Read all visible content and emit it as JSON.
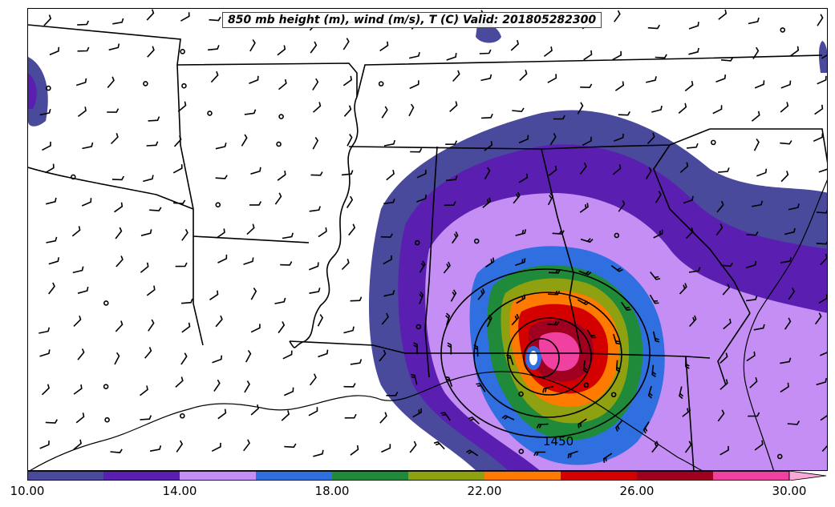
{
  "title": "850 mb height (m), wind (m/s), T (C) Valid: 201805282300",
  "contour_label": "1450",
  "colorbar": {
    "colors": [
      "#4a4a9c",
      "#5a1fb0",
      "#c58ef5",
      "#2f6fe0",
      "#1f8a3a",
      "#8fa010",
      "#ff7a00",
      "#d40000",
      "#a00020",
      "#f040a0"
    ],
    "extend_color": "#f9a8d8",
    "ticks": [
      "10.00",
      "14.00",
      "18.00",
      "22.00",
      "26.00",
      "30.00"
    ]
  },
  "map_elements": {
    "states": "state-boundaries",
    "coast": "coastline",
    "barbs": "wind-barbs"
  }
}
